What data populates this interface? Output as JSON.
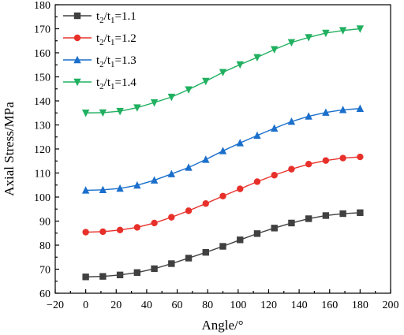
{
  "chart_data": {
    "type": "line",
    "xlabel": "Angle/°",
    "ylabel": "Axial Stress/MPa",
    "xlim": [
      -20,
      200
    ],
    "ylim": [
      60,
      180
    ],
    "xticks": [
      -20,
      0,
      20,
      40,
      60,
      80,
      100,
      120,
      140,
      160,
      180,
      200
    ],
    "yticks": [
      60,
      70,
      80,
      90,
      100,
      110,
      120,
      130,
      140,
      150,
      160,
      170,
      180
    ],
    "legend_position": "top-left",
    "x": [
      0,
      11.25,
      22.5,
      33.75,
      45,
      56.25,
      67.5,
      78.75,
      90,
      101.25,
      112.5,
      123.75,
      135,
      146.25,
      157.5,
      168.75,
      180
    ],
    "series": [
      {
        "name": "t2/t1=1.1",
        "color": "#404040",
        "marker": "square",
        "values": [
          66.8,
          67.0,
          67.6,
          68.6,
          70.2,
          72.3,
          74.6,
          77.0,
          79.5,
          82.2,
          84.8,
          87.1,
          89.2,
          91.0,
          92.3,
          93.1,
          93.5
        ]
      },
      {
        "name": "t2/t1=1.2",
        "color": "#e8302a",
        "marker": "circle",
        "values": [
          85.4,
          85.6,
          86.3,
          87.4,
          89.2,
          91.6,
          94.3,
          97.3,
          100.4,
          103.4,
          106.4,
          109.1,
          111.6,
          113.7,
          115.2,
          116.2,
          116.7
        ]
      },
      {
        "name": "t2/t1=1.3",
        "color": "#1a6fcc",
        "marker": "triangle-up",
        "values": [
          102.8,
          103.0,
          103.6,
          104.9,
          107.0,
          109.6,
          112.3,
          115.6,
          119.2,
          122.5,
          125.6,
          128.6,
          131.4,
          133.6,
          135.2,
          136.3,
          136.8
        ]
      },
      {
        "name": "t2/t1=1.4",
        "color": "#20b060",
        "marker": "triangle-down",
        "values": [
          135.0,
          135.1,
          135.7,
          137.2,
          139.3,
          141.6,
          144.7,
          148.2,
          151.9,
          155.1,
          158.1,
          161.4,
          164.3,
          166.4,
          168.2,
          169.3,
          170.0
        ]
      }
    ],
    "legend_labels": [
      {
        "base": "t",
        "sub1": "2",
        "mid": "/t",
        "sub2": "1",
        "tail": "=1.1"
      },
      {
        "base": "t",
        "sub1": "2",
        "mid": "/t",
        "sub2": "1",
        "tail": "=1.2"
      },
      {
        "base": "t",
        "sub1": "2",
        "mid": "/t",
        "sub2": "1",
        "tail": "=1.3"
      },
      {
        "base": "t",
        "sub1": "2",
        "mid": "/t",
        "sub2": "1",
        "tail": "=1.4"
      }
    ]
  }
}
